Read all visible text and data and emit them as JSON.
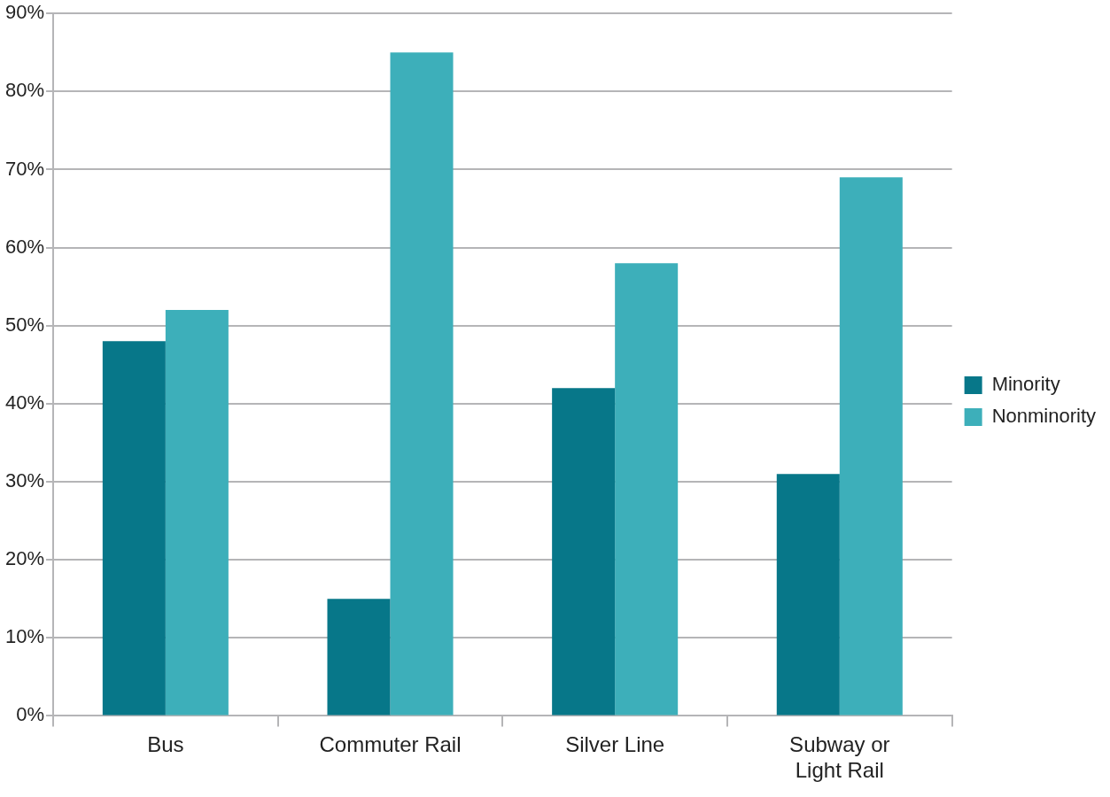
{
  "chart_data": {
    "type": "bar",
    "categories": [
      "Bus",
      "Commuter Rail",
      "Silver Line",
      "Subway or Light Rail"
    ],
    "series": [
      {
        "name": "Minority",
        "color": "#077789",
        "values": [
          48,
          15,
          42,
          31
        ]
      },
      {
        "name": "Nonminority",
        "color": "#3dafba",
        "values": [
          52,
          85,
          58,
          69
        ]
      }
    ],
    "ylim": [
      0,
      90
    ],
    "yticks": [
      {
        "value": 0,
        "label": "0%"
      },
      {
        "value": 10,
        "label": "10%"
      },
      {
        "value": 20,
        "label": "20%"
      },
      {
        "value": 30,
        "label": "30%"
      },
      {
        "value": 40,
        "label": "40%"
      },
      {
        "value": 50,
        "label": "50%"
      },
      {
        "value": 60,
        "label": "60%"
      },
      {
        "value": 70,
        "label": "70%"
      },
      {
        "value": 80,
        "label": "80%"
      },
      {
        "value": 90,
        "label": "90%"
      }
    ],
    "grid": "y",
    "legend": "right"
  }
}
